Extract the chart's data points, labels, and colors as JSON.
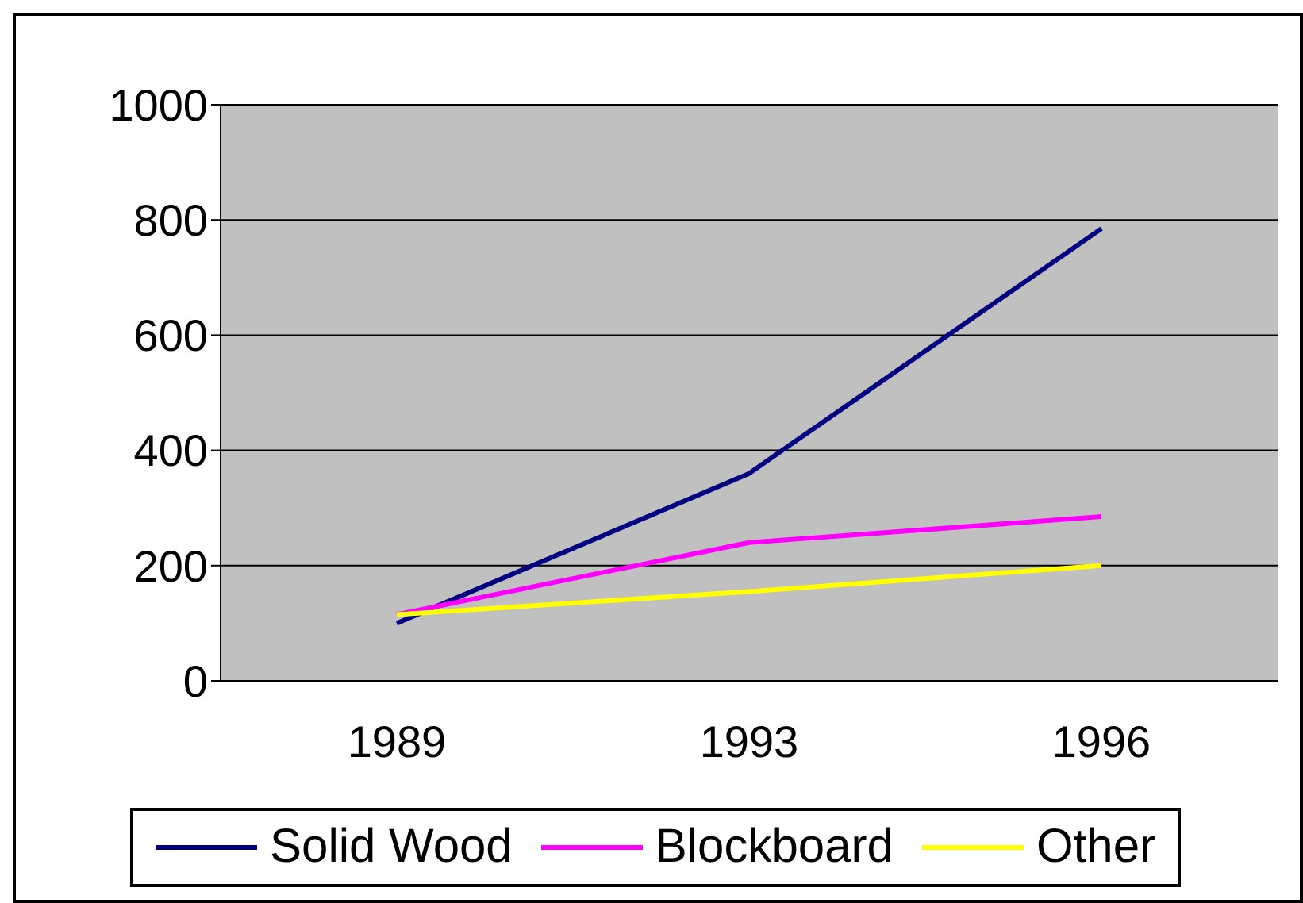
{
  "chart_data": {
    "type": "line",
    "categories": [
      "1989",
      "1993",
      "1996"
    ],
    "series": [
      {
        "name": "Solid Wood",
        "color": "#000080",
        "values": [
          100,
          360,
          785
        ]
      },
      {
        "name": "Blockboard",
        "color": "#ff00ff",
        "values": [
          115,
          240,
          285
        ]
      },
      {
        "name": "Other",
        "color": "#ffff00",
        "values": [
          115,
          155,
          200
        ]
      }
    ],
    "ylim": [
      0,
      1000
    ],
    "yticks": [
      0,
      200,
      400,
      600,
      800,
      1000
    ],
    "grid": "y",
    "legend": "bottom",
    "marker": "none"
  }
}
